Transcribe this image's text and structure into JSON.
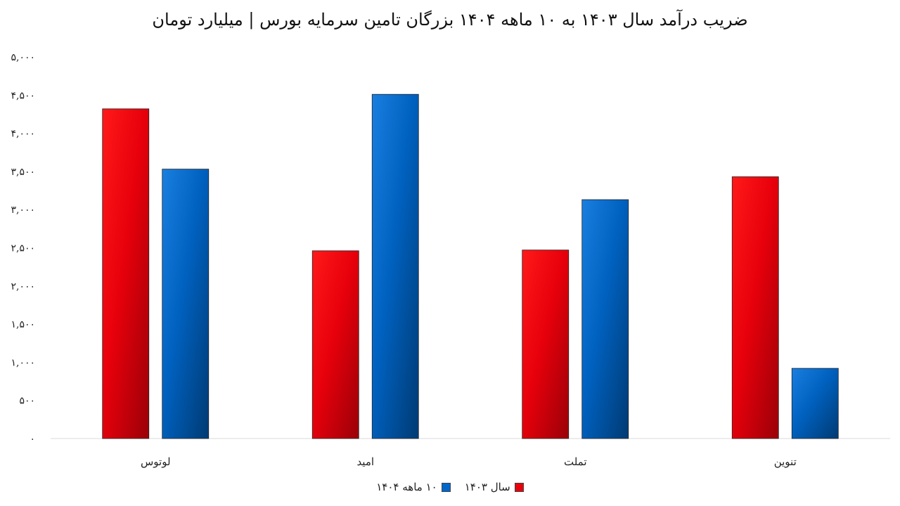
{
  "chart_data": {
    "type": "bar",
    "title": "ضریب درآمد سال ۱۴۰۳ به ۱۰ ماهه ۱۴۰۴ بزرگان تامین سرمایه بورس | میلیارد تومان",
    "xlabel": "",
    "ylabel": "",
    "categories": [
      "لوتوس",
      "امید",
      "تملت",
      "تنوین"
    ],
    "series": [
      {
        "name": "سال ۱۴۰۳",
        "values": [
          4320,
          2460,
          2470,
          3430
        ],
        "color": "#e8000b"
      },
      {
        "name": "۱۰ ماهه ۱۴۰۴",
        "values": [
          3530,
          4510,
          3130,
          920
        ],
        "color": "#0066cc"
      }
    ],
    "ylim": [
      0,
      5000
    ],
    "yticks": [
      0,
      500,
      1000,
      1500,
      2000,
      2500,
      3000,
      3500,
      4000,
      4500,
      5000
    ],
    "ytick_labels": [
      "۰",
      "۵۰۰",
      "۱,۰۰۰",
      "۱,۵۰۰",
      "۲,۰۰۰",
      "۲,۵۰۰",
      "۳,۰۰۰",
      "۳,۵۰۰",
      "۴,۰۰۰",
      "۴,۵۰۰",
      "۵,۰۰۰"
    ],
    "grid": false,
    "legend": "bottom-center"
  }
}
